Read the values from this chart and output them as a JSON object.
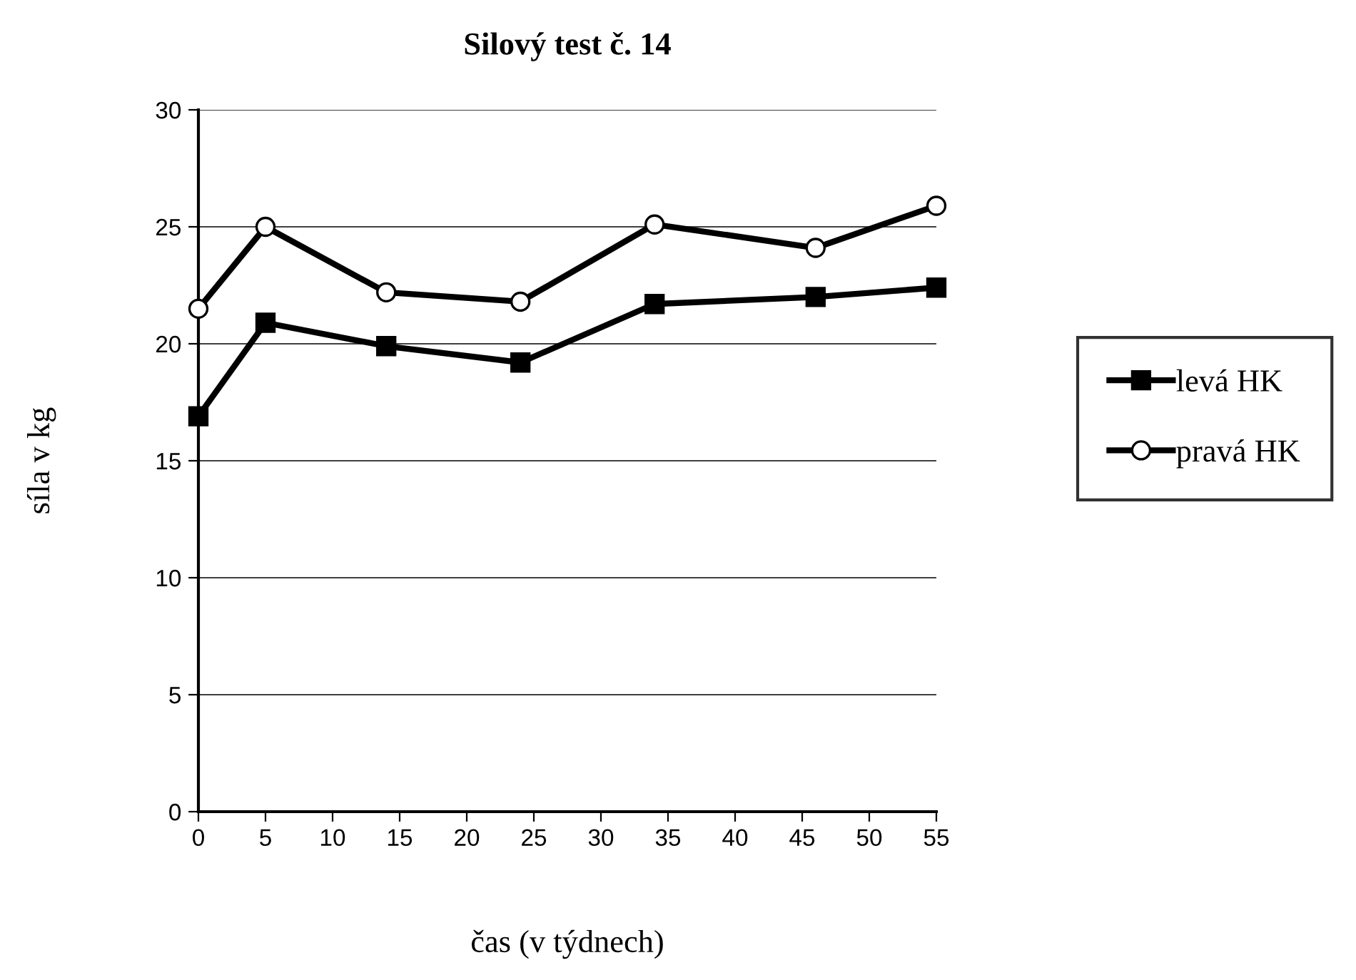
{
  "chart_data": {
    "type": "line",
    "title": "Silový test č. 14",
    "xlabel": "čas (v týdnech)",
    "ylabel": "síla v kg",
    "xlim": [
      0,
      55
    ],
    "xticks": [
      0,
      5,
      10,
      15,
      20,
      25,
      30,
      35,
      40,
      45,
      50,
      55
    ],
    "ylim": [
      0,
      30
    ],
    "yticks": [
      0,
      5,
      10,
      15,
      20,
      25,
      30
    ],
    "grid": "y",
    "legend": "right",
    "series": [
      {
        "name": "levá HK",
        "color": "#000000",
        "marker": "square",
        "x": [
          0,
          5,
          14,
          24,
          34,
          46,
          55
        ],
        "values": [
          16.9,
          20.9,
          19.9,
          19.2,
          21.7,
          22.0,
          22.4
        ]
      },
      {
        "name": "pravá HK",
        "color": "#000000",
        "marker": "circle",
        "x": [
          0,
          5,
          14,
          24,
          34,
          46,
          55
        ],
        "values": [
          21.5,
          25.0,
          22.2,
          21.8,
          25.1,
          24.1,
          25.9
        ]
      }
    ]
  }
}
